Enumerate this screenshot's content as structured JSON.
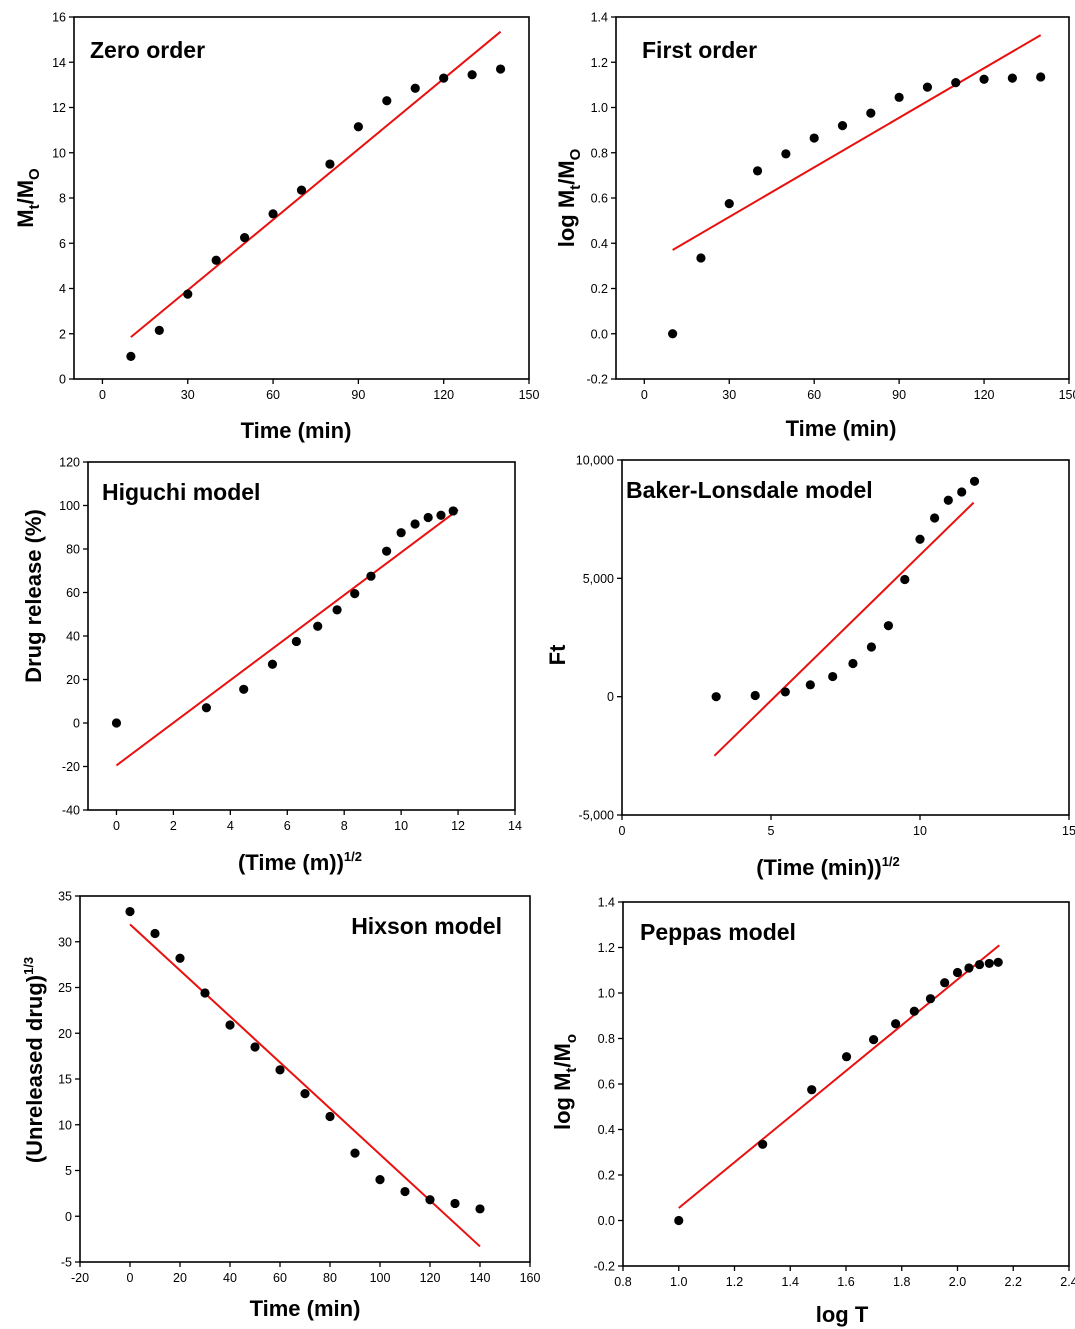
{
  "chart_data": [
    {
      "id": "zero-order",
      "type": "scatter",
      "title": "Zero order",
      "xlabel": "Time (min)",
      "ylabel": {
        "base": "M",
        "sub1": "t",
        "mid": "/M",
        "sub2": "O"
      },
      "xlim": [
        -10,
        150
      ],
      "ylim": [
        0,
        16
      ],
      "xticks": [
        0,
        30,
        60,
        90,
        120,
        150
      ],
      "yticks": [
        0,
        2,
        4,
        6,
        8,
        10,
        12,
        14,
        16
      ],
      "x": [
        10,
        20,
        30,
        40,
        50,
        60,
        70,
        80,
        90,
        100,
        110,
        120,
        130,
        140
      ],
      "y": [
        1.0,
        2.15,
        3.75,
        5.25,
        6.25,
        7.3,
        8.35,
        9.5,
        11.15,
        12.3,
        12.85,
        13.3,
        13.45,
        13.7
      ],
      "fit": {
        "x": [
          10,
          140
        ],
        "y": [
          1.85,
          15.35
        ]
      },
      "colors": {
        "points": "#000000",
        "fit": "#e8110f"
      }
    },
    {
      "id": "first-order",
      "type": "scatter",
      "title": "First order",
      "xlabel": "Time (min)",
      "ylabel": {
        "pre": "log ",
        "base": "M",
        "sub1": "t",
        "mid": "/M",
        "sub2": "O"
      },
      "xlim": [
        -10,
        150
      ],
      "ylim": [
        -0.2,
        1.4
      ],
      "xticks": [
        0,
        30,
        60,
        90,
        120,
        150
      ],
      "yticks": [
        -0.2,
        0.0,
        0.2,
        0.4,
        0.6,
        0.8,
        1.0,
        1.2,
        1.4
      ],
      "x": [
        10,
        20,
        30,
        40,
        50,
        60,
        70,
        80,
        90,
        100,
        110,
        120,
        130,
        140
      ],
      "y": [
        0.0,
        0.335,
        0.575,
        0.72,
        0.795,
        0.865,
        0.92,
        0.975,
        1.045,
        1.09,
        1.11,
        1.125,
        1.13,
        1.135
      ],
      "fit": {
        "x": [
          10,
          140
        ],
        "y": [
          0.37,
          1.32
        ]
      },
      "colors": {
        "points": "#000000",
        "fit": "#e8110f"
      }
    },
    {
      "id": "higuchi",
      "type": "scatter",
      "title": "Higuchi  model",
      "xlabel": {
        "main": "(Time (m))",
        "sup": "1/2"
      },
      "ylabel": "Drug release (%)",
      "xlim": [
        -1,
        14
      ],
      "ylim": [
        -40,
        120
      ],
      "xticks": [
        0,
        2,
        4,
        6,
        8,
        10,
        12,
        14
      ],
      "yticks": [
        -40,
        -20,
        0,
        20,
        40,
        60,
        80,
        100,
        120
      ],
      "x": [
        0,
        3.16,
        4.47,
        5.48,
        6.32,
        7.07,
        7.75,
        8.37,
        8.94,
        9.49,
        10.0,
        10.49,
        10.95,
        11.4,
        11.83
      ],
      "y": [
        0,
        7,
        15.5,
        27,
        37.5,
        44.5,
        52,
        59.5,
        67.5,
        79,
        87.5,
        91.5,
        94.5,
        95.5,
        97.5
      ],
      "fit": {
        "x": [
          0,
          12
        ],
        "y": [
          -19.5,
          98
        ]
      },
      "colors": {
        "points": "#000000",
        "fit": "#e8110f"
      }
    },
    {
      "id": "baker-lonsdale",
      "type": "scatter",
      "title": "Baker-Lonsdale  model",
      "xlabel": {
        "main": "(Time (min))",
        "sup": "1/2"
      },
      "ylabel": "Ft",
      "xlim": [
        0,
        15
      ],
      "ylim": [
        -5000,
        10000
      ],
      "xticks": [
        0,
        5,
        10,
        15
      ],
      "ytick_values": [
        -5000,
        0,
        5000,
        10000
      ],
      "ytick_labels": [
        "-5,000",
        "0",
        "5,000",
        "10,000"
      ],
      "x": [
        3.16,
        4.47,
        5.48,
        6.32,
        7.07,
        7.75,
        8.37,
        8.94,
        9.49,
        10.0,
        10.49,
        10.95,
        11.4,
        11.83
      ],
      "y": [
        0,
        50,
        200,
        500,
        850,
        1400,
        2100,
        3000,
        4950,
        6650,
        7550,
        8300,
        8650,
        9100
      ],
      "fit": {
        "x": [
          3.1,
          11.8
        ],
        "y": [
          -2500,
          8200
        ]
      },
      "colors": {
        "points": "#000000",
        "fit": "#e8110f"
      }
    },
    {
      "id": "hixson",
      "type": "scatter",
      "title": "Hixson  model",
      "xlabel": "Time (min)",
      "ylabel": {
        "main": "(Unreleased drug)",
        "sup": "1/3"
      },
      "xlim": [
        -20,
        160
      ],
      "ylim": [
        -5,
        35
      ],
      "xticks": [
        -20,
        0,
        20,
        40,
        60,
        80,
        100,
        120,
        140,
        160
      ],
      "yticks": [
        -5,
        0,
        5,
        10,
        15,
        20,
        25,
        30,
        35
      ],
      "x": [
        0,
        10,
        20,
        30,
        40,
        50,
        60,
        70,
        80,
        90,
        100,
        110,
        120,
        130,
        140
      ],
      "y": [
        33.3,
        30.9,
        28.2,
        24.4,
        20.9,
        18.5,
        16.0,
        13.4,
        10.9,
        6.9,
        4.0,
        2.7,
        1.8,
        1.4,
        0.8
      ],
      "fit": {
        "x": [
          0,
          140
        ],
        "y": [
          31.9,
          -3.3
        ]
      },
      "colors": {
        "points": "#000000",
        "fit": "#e8110f"
      }
    },
    {
      "id": "peppas",
      "type": "scatter",
      "title": "Peppas  model",
      "xlabel": "log T",
      "ylabel": {
        "pre": "log ",
        "base": "M",
        "sub1": "t",
        "mid": "/M",
        "sub2": "o"
      },
      "xlim": [
        0.8,
        2.4
      ],
      "ylim": [
        -0.2,
        1.4
      ],
      "xticks": [
        0.8,
        1.0,
        1.2,
        1.4,
        1.6,
        1.8,
        2.0,
        2.2,
        2.4
      ],
      "yticks": [
        -0.2,
        0.0,
        0.2,
        0.4,
        0.6,
        0.8,
        1.0,
        1.2,
        1.4
      ],
      "x": [
        1.0,
        1.301,
        1.477,
        1.602,
        1.699,
        1.778,
        1.845,
        1.903,
        1.954,
        2.0,
        2.041,
        2.079,
        2.114,
        2.146
      ],
      "y": [
        0.0,
        0.335,
        0.575,
        0.72,
        0.795,
        0.865,
        0.92,
        0.975,
        1.045,
        1.09,
        1.11,
        1.125,
        1.13,
        1.135
      ],
      "fit": {
        "x": [
          1.0,
          2.15
        ],
        "y": [
          0.055,
          1.21
        ]
      },
      "colors": {
        "points": "#000000",
        "fit": "#e8110f"
      }
    }
  ]
}
